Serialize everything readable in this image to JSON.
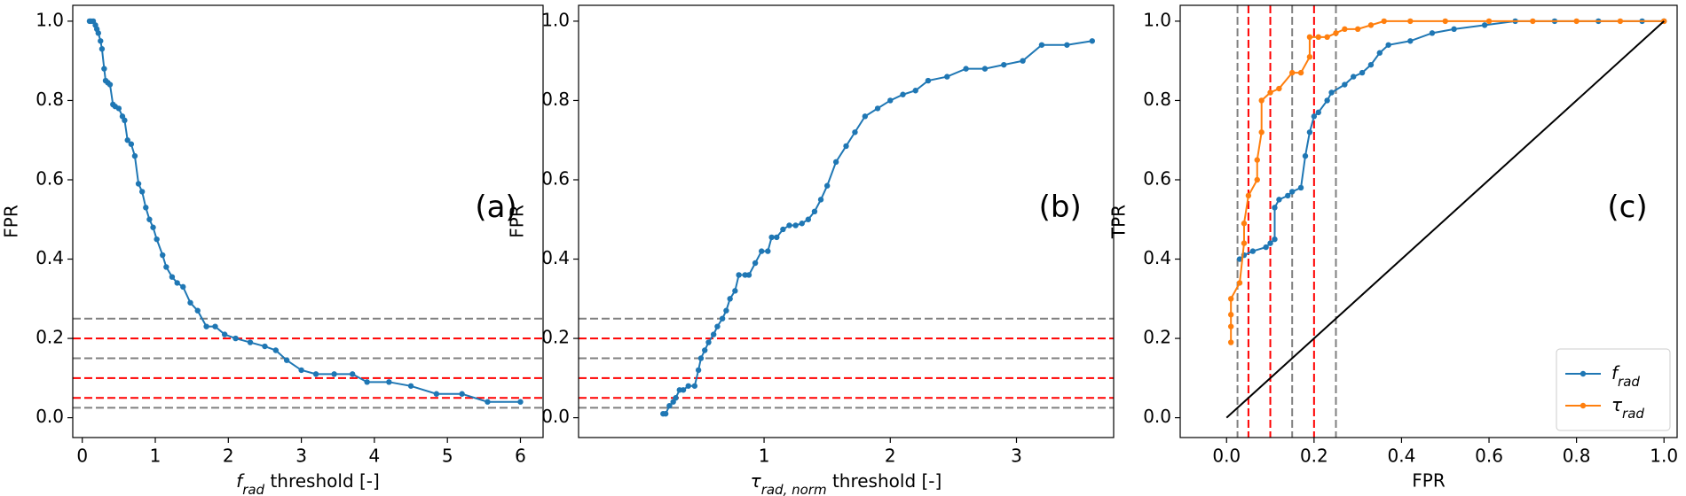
{
  "chart_data": [
    {
      "type": "line",
      "annotation": "(a)",
      "xlabel": [
        "f",
        "rad",
        " threshold [-]"
      ],
      "ylabel": "FPR",
      "xlim": [
        -0.13,
        6.31
      ],
      "ylim": [
        -0.05,
        1.04
      ],
      "xticks": [
        0,
        1,
        2,
        3,
        4,
        5,
        6
      ],
      "yticks": [
        {
          "value": 0,
          "label": "0.0"
        },
        0.2,
        0.4,
        0.6,
        0.8,
        {
          "value": 1,
          "label": "1.0"
        }
      ],
      "hlines": [
        {
          "value": 0.025,
          "color": "gray"
        },
        {
          "value": 0.05,
          "color": "red"
        },
        {
          "value": 0.1,
          "color": "red"
        },
        {
          "value": 0.15,
          "color": "gray"
        },
        {
          "value": 0.2,
          "color": "red"
        },
        {
          "value": 0.25,
          "color": "gray"
        }
      ],
      "series": [
        {
          "color": "#1f77b4",
          "marker": true,
          "x": [
            0.1,
            0.12,
            0.15,
            0.18,
            0.2,
            0.22,
            0.25,
            0.27,
            0.3,
            0.32,
            0.35,
            0.38,
            0.42,
            0.45,
            0.5,
            0.55,
            0.58,
            0.62,
            0.67,
            0.72,
            0.77,
            0.82,
            0.87,
            0.92,
            0.97,
            1.02,
            1.1,
            1.15,
            1.23,
            1.3,
            1.38,
            1.48,
            1.58,
            1.7,
            1.82,
            1.95,
            2.1,
            2.3,
            2.5,
            2.65,
            2.8,
            3.0,
            3.2,
            3.45,
            3.7,
            3.9,
            4.2,
            4.5,
            4.85,
            5.2,
            5.55,
            6.0
          ],
          "values": [
            1.0,
            1.0,
            1.0,
            0.99,
            0.98,
            0.97,
            0.95,
            0.93,
            0.88,
            0.85,
            0.845,
            0.84,
            0.79,
            0.785,
            0.78,
            0.76,
            0.75,
            0.7,
            0.69,
            0.66,
            0.59,
            0.57,
            0.53,
            0.5,
            0.48,
            0.45,
            0.41,
            0.38,
            0.355,
            0.34,
            0.33,
            0.29,
            0.27,
            0.23,
            0.23,
            0.21,
            0.2,
            0.19,
            0.18,
            0.17,
            0.145,
            0.12,
            0.11,
            0.11,
            0.11,
            0.09,
            0.09,
            0.08,
            0.06,
            0.06,
            0.04,
            0.04
          ]
        }
      ]
    },
    {
      "type": "line",
      "annotation": "(b)",
      "xlabel": [
        "τ",
        "rad, norm",
        " threshold [-]"
      ],
      "ylabel": "FPR",
      "xlim": [
        -0.47,
        3.77
      ],
      "ylim": [
        -0.05,
        1.04
      ],
      "xticks": [
        1,
        2,
        3
      ],
      "yticks": [
        {
          "value": 0,
          "label": "0.0"
        },
        0.2,
        0.4,
        0.6,
        0.8,
        {
          "value": 1,
          "label": "1.0"
        }
      ],
      "hlines": [
        {
          "value": 0.025,
          "color": "gray"
        },
        {
          "value": 0.05,
          "color": "red"
        },
        {
          "value": 0.1,
          "color": "red"
        },
        {
          "value": 0.15,
          "color": "gray"
        },
        {
          "value": 0.2,
          "color": "red"
        },
        {
          "value": 0.25,
          "color": "gray"
        }
      ],
      "series": [
        {
          "color": "#1f77b4",
          "marker": true,
          "x": [
            0.2,
            0.22,
            0.25,
            0.28,
            0.3,
            0.33,
            0.36,
            0.4,
            0.45,
            0.48,
            0.5,
            0.53,
            0.56,
            0.6,
            0.63,
            0.67,
            0.7,
            0.73,
            0.77,
            0.8,
            0.85,
            0.88,
            0.93,
            0.98,
            1.03,
            1.06,
            1.1,
            1.15,
            1.2,
            1.25,
            1.3,
            1.35,
            1.4,
            1.45,
            1.5,
            1.57,
            1.65,
            1.72,
            1.8,
            1.9,
            2.0,
            2.1,
            2.2,
            2.3,
            2.45,
            2.6,
            2.75,
            2.9,
            3.05,
            3.2,
            3.4,
            3.6
          ],
          "values": [
            0.01,
            0.01,
            0.03,
            0.04,
            0.05,
            0.07,
            0.07,
            0.08,
            0.08,
            0.12,
            0.15,
            0.17,
            0.19,
            0.21,
            0.23,
            0.25,
            0.27,
            0.3,
            0.32,
            0.36,
            0.36,
            0.36,
            0.39,
            0.42,
            0.42,
            0.455,
            0.455,
            0.475,
            0.485,
            0.485,
            0.49,
            0.5,
            0.52,
            0.55,
            0.585,
            0.645,
            0.685,
            0.72,
            0.76,
            0.78,
            0.8,
            0.815,
            0.825,
            0.85,
            0.86,
            0.88,
            0.88,
            0.89,
            0.9,
            0.94,
            0.94,
            0.95
          ]
        }
      ]
    },
    {
      "type": "line",
      "annotation": "(c)",
      "xlabel": "FPR",
      "ylabel": "TPR",
      "xlim": [
        -0.106,
        1.03
      ],
      "ylim": [
        -0.05,
        1.04
      ],
      "xticks": [
        {
          "value": 0,
          "label": "0.0"
        },
        0.2,
        0.4,
        0.6,
        0.8,
        {
          "value": 1,
          "label": "1.0"
        }
      ],
      "yticks": [
        {
          "value": 0,
          "label": "0.0"
        },
        0.2,
        0.4,
        0.6,
        0.8,
        {
          "value": 1,
          "label": "1.0"
        }
      ],
      "vlines": [
        {
          "value": 0.025,
          "color": "gray"
        },
        {
          "value": 0.05,
          "color": "red"
        },
        {
          "value": 0.1,
          "color": "red"
        },
        {
          "value": 0.15,
          "color": "gray"
        },
        {
          "value": 0.2,
          "color": "red"
        },
        {
          "value": 0.25,
          "color": "gray"
        }
      ],
      "legend": "lower right",
      "series": [
        {
          "name": [
            "f",
            "rad"
          ],
          "color": "#1f77b4",
          "marker": true,
          "x": [
            0.03,
            0.04,
            0.06,
            0.09,
            0.1,
            0.11,
            0.11,
            0.12,
            0.14,
            0.15,
            0.17,
            0.18,
            0.19,
            0.2,
            0.21,
            0.23,
            0.24,
            0.27,
            0.29,
            0.31,
            0.33,
            0.35,
            0.37,
            0.42,
            0.47,
            0.52,
            0.59,
            0.66,
            0.75,
            0.85,
            0.95,
            1.0
          ],
          "values": [
            0.4,
            0.41,
            0.42,
            0.43,
            0.44,
            0.45,
            0.53,
            0.55,
            0.56,
            0.57,
            0.58,
            0.66,
            0.72,
            0.76,
            0.77,
            0.8,
            0.82,
            0.84,
            0.86,
            0.87,
            0.89,
            0.92,
            0.94,
            0.95,
            0.97,
            0.98,
            0.99,
            1.0,
            1.0,
            1.0,
            1.0,
            1.0
          ]
        },
        {
          "name": [
            "τ",
            "rad"
          ],
          "color": "#ff7f0e",
          "marker": true,
          "x": [
            0.01,
            0.01,
            0.01,
            0.01,
            0.03,
            0.04,
            0.04,
            0.05,
            0.07,
            0.07,
            0.08,
            0.08,
            0.1,
            0.12,
            0.15,
            0.17,
            0.19,
            0.19,
            0.21,
            0.23,
            0.25,
            0.27,
            0.3,
            0.33,
            0.36,
            0.42,
            0.5,
            0.6,
            0.7,
            0.8,
            0.9,
            1.0
          ],
          "values": [
            0.19,
            0.23,
            0.26,
            0.3,
            0.34,
            0.44,
            0.49,
            0.56,
            0.6,
            0.65,
            0.72,
            0.8,
            0.82,
            0.83,
            0.87,
            0.87,
            0.91,
            0.96,
            0.96,
            0.96,
            0.97,
            0.98,
            0.98,
            0.99,
            1.0,
            1.0,
            1.0,
            1.0,
            1.0,
            1.0,
            1.0,
            1.0
          ]
        },
        {
          "color": "#000000",
          "marker": false,
          "x": [
            0,
            1
          ],
          "values": [
            0,
            1
          ]
        }
      ]
    }
  ]
}
